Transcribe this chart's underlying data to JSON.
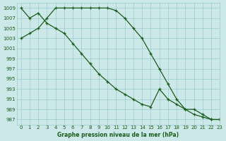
{
  "title": "Graphe pression niveau de la mer (hPa)",
  "xlim": [
    -0.5,
    23
  ],
  "ylim": [
    986,
    1010
  ],
  "yticks": [
    987,
    989,
    991,
    993,
    995,
    997,
    999,
    1001,
    1003,
    1005,
    1007,
    1009
  ],
  "xticks": [
    0,
    1,
    2,
    3,
    4,
    5,
    6,
    7,
    8,
    9,
    10,
    11,
    12,
    13,
    14,
    15,
    16,
    17,
    18,
    19,
    20,
    21,
    22,
    23
  ],
  "bg_color": "#cce8e8",
  "grid_color": "#99cccc",
  "line_color": "#1a5c1a",
  "line1_x": [
    0,
    1,
    2,
    3,
    4,
    5,
    6,
    7,
    8,
    9,
    10,
    11,
    12,
    13,
    14,
    15,
    16,
    17,
    18,
    19,
    20,
    21,
    22,
    23
  ],
  "line1_y": [
    1003,
    1004,
    1005,
    1007,
    1009,
    1009,
    1009,
    1009,
    1009,
    1009,
    1009,
    1008.5,
    1007,
    1005,
    1003,
    1000,
    997,
    994,
    991,
    989,
    988,
    987.5,
    987,
    987
  ],
  "line2_x": [
    0,
    1,
    2,
    3,
    4,
    5,
    6,
    7,
    8,
    9,
    10,
    11,
    12,
    13,
    14,
    15,
    16,
    17,
    18,
    19,
    20,
    21,
    22,
    23
  ],
  "line2_y": [
    1009,
    1007,
    1008,
    1006,
    1005,
    1004,
    1002,
    1000,
    998,
    996,
    994.5,
    993,
    992,
    991,
    990,
    989.5,
    993,
    991,
    990,
    989,
    989,
    988,
    987,
    987
  ]
}
